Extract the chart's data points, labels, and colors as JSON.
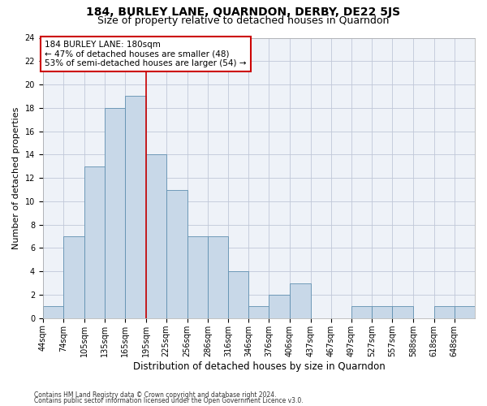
{
  "title": "184, BURLEY LANE, QUARNDON, DERBY, DE22 5JS",
  "subtitle": "Size of property relative to detached houses in Quarndon",
  "xlabel": "Distribution of detached houses by size in Quarndon",
  "ylabel": "Number of detached properties",
  "footer_line1": "Contains HM Land Registry data © Crown copyright and database right 2024.",
  "footer_line2": "Contains public sector information licensed under the Open Government Licence v3.0.",
  "bar_labels": [
    "44sqm",
    "74sqm",
    "105sqm",
    "135sqm",
    "165sqm",
    "195sqm",
    "225sqm",
    "256sqm",
    "286sqm",
    "316sqm",
    "346sqm",
    "376sqm",
    "406sqm",
    "437sqm",
    "467sqm",
    "497sqm",
    "527sqm",
    "557sqm",
    "588sqm",
    "618sqm",
    "648sqm"
  ],
  "bar_values": [
    1,
    7,
    13,
    18,
    19,
    14,
    11,
    7,
    7,
    4,
    1,
    2,
    3,
    0,
    0,
    1,
    1,
    1,
    0,
    1,
    1
  ],
  "bar_color": "#c8d8e8",
  "bar_edgecolor": "#6090b0",
  "grid_color": "#c0c8d8",
  "background_color": "#eef2f8",
  "annotation_box_text": "184 BURLEY LANE: 180sqm\n← 47% of detached houses are smaller (48)\n53% of semi-detached houses are larger (54) →",
  "annotation_box_color": "#ffffff",
  "annotation_box_edgecolor": "#cc0000",
  "property_line_x": 195,
  "property_line_color": "#cc0000",
  "ylim": [
    0,
    24
  ],
  "yticks": [
    0,
    2,
    4,
    6,
    8,
    10,
    12,
    14,
    16,
    18,
    20,
    22,
    24
  ],
  "title_fontsize": 10,
  "subtitle_fontsize": 9,
  "xlabel_fontsize": 8.5,
  "ylabel_fontsize": 8,
  "tick_fontsize": 7,
  "annotation_fontsize": 7.5,
  "footer_fontsize": 5.5
}
